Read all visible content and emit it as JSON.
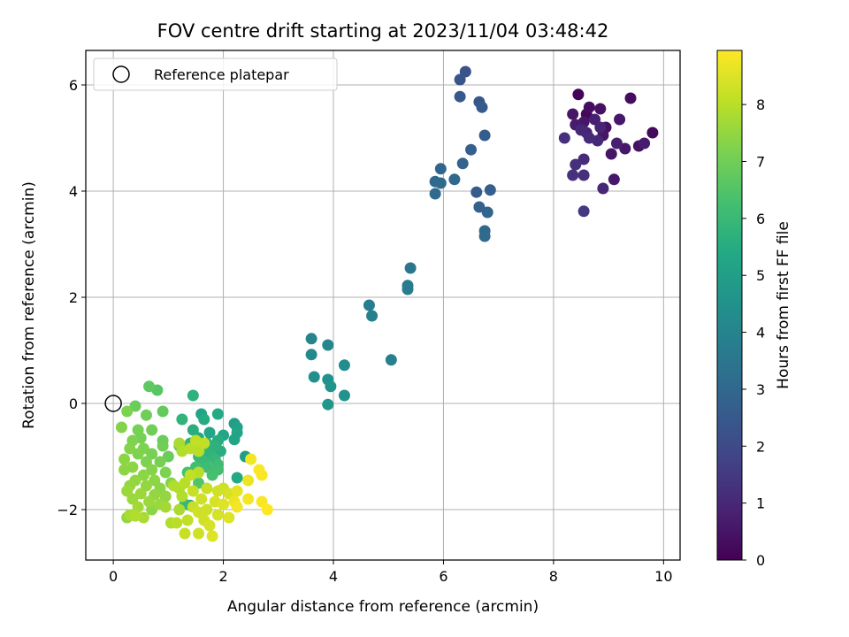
{
  "chart_data": {
    "type": "scatter",
    "title": "FOV centre drift starting at 2023/11/04 03:48:42",
    "xlabel": "Angular distance from reference (arcmin)",
    "ylabel": "Rotation from reference (arcmin)",
    "xlim": [
      -0.5,
      10.3
    ],
    "ylim": [
      -2.95,
      6.65
    ],
    "xticks": [
      0,
      2,
      4,
      6,
      8,
      10
    ],
    "yticks": [
      -2,
      0,
      2,
      4,
      6
    ],
    "xtick_labels": [
      "0",
      "2",
      "4",
      "6",
      "8",
      "10"
    ],
    "ytick_labels": [
      "−2",
      "0",
      "2",
      "4",
      "6"
    ],
    "grid": true,
    "legend": {
      "placement": "top-left",
      "entries": [
        "Reference platepar"
      ]
    },
    "reference_point": {
      "x": 0,
      "y": 0,
      "label": "Reference platepar"
    },
    "colorbar": {
      "label": "Hours from first FF file",
      "colormap": "viridis",
      "min": 0,
      "max": 8.95,
      "ticks": [
        0,
        1,
        2,
        3,
        4,
        5,
        6,
        7,
        8
      ],
      "tick_labels": [
        "0",
        "1",
        "2",
        "3",
        "4",
        "5",
        "6",
        "7",
        "8"
      ]
    },
    "points": [
      {
        "x": 8.45,
        "y": 5.82,
        "c": 0.1
      },
      {
        "x": 8.6,
        "y": 5.45,
        "c": 0.2
      },
      {
        "x": 8.65,
        "y": 5.58,
        "c": 0.3
      },
      {
        "x": 8.85,
        "y": 5.55,
        "c": 0.4
      },
      {
        "x": 9.4,
        "y": 5.75,
        "c": 0.3
      },
      {
        "x": 8.35,
        "y": 5.45,
        "c": 0.5
      },
      {
        "x": 8.55,
        "y": 5.3,
        "c": 0.6
      },
      {
        "x": 8.4,
        "y": 5.25,
        "c": 0.7
      },
      {
        "x": 8.75,
        "y": 5.35,
        "c": 0.8
      },
      {
        "x": 8.85,
        "y": 5.2,
        "c": 0.9
      },
      {
        "x": 9.2,
        "y": 5.35,
        "c": 0.6
      },
      {
        "x": 9.8,
        "y": 5.1,
        "c": 0.2
      },
      {
        "x": 8.95,
        "y": 5.2,
        "c": 0.4
      },
      {
        "x": 8.9,
        "y": 5.05,
        "c": 0.5
      },
      {
        "x": 8.6,
        "y": 5.1,
        "c": 0.9
      },
      {
        "x": 8.5,
        "y": 5.15,
        "c": 1.0
      },
      {
        "x": 8.65,
        "y": 5.0,
        "c": 1.1
      },
      {
        "x": 8.2,
        "y": 5.0,
        "c": 1.2
      },
      {
        "x": 8.8,
        "y": 4.95,
        "c": 1.0
      },
      {
        "x": 9.15,
        "y": 4.9,
        "c": 0.8
      },
      {
        "x": 9.3,
        "y": 4.8,
        "c": 0.6
      },
      {
        "x": 9.55,
        "y": 4.85,
        "c": 0.4
      },
      {
        "x": 9.65,
        "y": 4.9,
        "c": 0.7
      },
      {
        "x": 9.05,
        "y": 4.7,
        "c": 0.5
      },
      {
        "x": 8.55,
        "y": 4.6,
        "c": 1.1
      },
      {
        "x": 8.4,
        "y": 4.5,
        "c": 1.2
      },
      {
        "x": 8.35,
        "y": 4.3,
        "c": 1.3
      },
      {
        "x": 8.55,
        "y": 4.3,
        "c": 1.2
      },
      {
        "x": 9.1,
        "y": 4.22,
        "c": 0.6
      },
      {
        "x": 8.9,
        "y": 4.05,
        "c": 1.0
      },
      {
        "x": 8.55,
        "y": 3.62,
        "c": 1.5
      },
      {
        "x": 6.4,
        "y": 6.25,
        "c": 2.3
      },
      {
        "x": 6.3,
        "y": 6.1,
        "c": 2.4
      },
      {
        "x": 6.3,
        "y": 5.78,
        "c": 2.5
      },
      {
        "x": 6.65,
        "y": 5.68,
        "c": 2.4
      },
      {
        "x": 6.7,
        "y": 5.58,
        "c": 2.5
      },
      {
        "x": 6.75,
        "y": 5.05,
        "c": 2.6
      },
      {
        "x": 6.5,
        "y": 4.78,
        "c": 2.7
      },
      {
        "x": 6.35,
        "y": 4.52,
        "c": 2.8
      },
      {
        "x": 5.95,
        "y": 4.42,
        "c": 2.9
      },
      {
        "x": 6.2,
        "y": 4.22,
        "c": 3.0
      },
      {
        "x": 5.85,
        "y": 4.18,
        "c": 3.0
      },
      {
        "x": 5.95,
        "y": 4.15,
        "c": 3.1
      },
      {
        "x": 6.6,
        "y": 3.98,
        "c": 2.6
      },
      {
        "x": 6.85,
        "y": 4.02,
        "c": 2.7
      },
      {
        "x": 5.85,
        "y": 3.95,
        "c": 3.1
      },
      {
        "x": 6.65,
        "y": 3.7,
        "c": 2.8
      },
      {
        "x": 6.8,
        "y": 3.6,
        "c": 2.9
      },
      {
        "x": 6.75,
        "y": 3.25,
        "c": 3.0
      },
      {
        "x": 6.75,
        "y": 3.15,
        "c": 3.1
      },
      {
        "x": 5.4,
        "y": 2.55,
        "c": 3.5
      },
      {
        "x": 5.35,
        "y": 2.22,
        "c": 3.6
      },
      {
        "x": 5.35,
        "y": 2.15,
        "c": 3.7
      },
      {
        "x": 4.65,
        "y": 1.85,
        "c": 3.8
      },
      {
        "x": 4.7,
        "y": 1.65,
        "c": 3.9
      },
      {
        "x": 3.6,
        "y": 1.22,
        "c": 4.0
      },
      {
        "x": 3.9,
        "y": 1.1,
        "c": 4.1
      },
      {
        "x": 3.6,
        "y": 0.92,
        "c": 4.2
      },
      {
        "x": 5.05,
        "y": 0.82,
        "c": 3.9
      },
      {
        "x": 4.2,
        "y": 0.72,
        "c": 4.3
      },
      {
        "x": 3.65,
        "y": 0.5,
        "c": 4.4
      },
      {
        "x": 3.9,
        "y": 0.45,
        "c": 4.5
      },
      {
        "x": 3.95,
        "y": 0.32,
        "c": 4.6
      },
      {
        "x": 4.2,
        "y": 0.15,
        "c": 4.5
      },
      {
        "x": 3.9,
        "y": -0.02,
        "c": 4.7
      },
      {
        "x": 1.45,
        "y": 0.15,
        "c": 5.7
      },
      {
        "x": 1.6,
        "y": -0.2,
        "c": 5.2
      },
      {
        "x": 1.9,
        "y": -0.2,
        "c": 5.4
      },
      {
        "x": 1.65,
        "y": -0.3,
        "c": 5.5
      },
      {
        "x": 1.25,
        "y": -0.3,
        "c": 5.8
      },
      {
        "x": 2.2,
        "y": -0.38,
        "c": 5.0
      },
      {
        "x": 2.25,
        "y": -0.45,
        "c": 5.1
      },
      {
        "x": 2.25,
        "y": -0.55,
        "c": 5.2
      },
      {
        "x": 1.45,
        "y": -0.5,
        "c": 5.6
      },
      {
        "x": 1.75,
        "y": -0.55,
        "c": 5.3
      },
      {
        "x": 2.0,
        "y": -0.6,
        "c": 5.3
      },
      {
        "x": 1.55,
        "y": -0.65,
        "c": 5.4
      },
      {
        "x": 2.2,
        "y": -0.68,
        "c": 5.2
      },
      {
        "x": 1.9,
        "y": -0.7,
        "c": 5.5
      },
      {
        "x": 1.7,
        "y": -0.75,
        "c": 5.6
      },
      {
        "x": 1.4,
        "y": -0.75,
        "c": 5.8
      },
      {
        "x": 1.85,
        "y": -0.8,
        "c": 5.7
      },
      {
        "x": 1.6,
        "y": -0.85,
        "c": 5.9
      },
      {
        "x": 1.95,
        "y": -0.9,
        "c": 5.6
      },
      {
        "x": 1.75,
        "y": -0.95,
        "c": 5.8
      },
      {
        "x": 2.4,
        "y": -1.0,
        "c": 5.0
      },
      {
        "x": 1.55,
        "y": -1.0,
        "c": 6.0
      },
      {
        "x": 1.85,
        "y": -1.05,
        "c": 5.9
      },
      {
        "x": 1.65,
        "y": -1.1,
        "c": 6.0
      },
      {
        "x": 1.9,
        "y": -1.15,
        "c": 6.1
      },
      {
        "x": 1.7,
        "y": -1.2,
        "c": 6.1
      },
      {
        "x": 1.5,
        "y": -1.2,
        "c": 6.2
      },
      {
        "x": 1.9,
        "y": -1.25,
        "c": 6.2
      },
      {
        "x": 1.35,
        "y": -1.3,
        "c": 6.3
      },
      {
        "x": 1.8,
        "y": -1.35,
        "c": 6.3
      },
      {
        "x": 2.25,
        "y": -1.4,
        "c": 5.4
      },
      {
        "x": 1.55,
        "y": -1.5,
        "c": 6.5
      },
      {
        "x": 1.3,
        "y": -1.9,
        "c": 5.9
      },
      {
        "x": 1.4,
        "y": -1.92,
        "c": 5.7
      },
      {
        "x": 0.65,
        "y": 0.32,
        "c": 6.7
      },
      {
        "x": 0.8,
        "y": 0.25,
        "c": 6.6
      },
      {
        "x": 0.4,
        "y": -0.05,
        "c": 6.9
      },
      {
        "x": 0.25,
        "y": -0.15,
        "c": 7.2
      },
      {
        "x": 0.6,
        "y": -0.22,
        "c": 7.0
      },
      {
        "x": 0.9,
        "y": -0.15,
        "c": 6.8
      },
      {
        "x": 0.15,
        "y": -0.45,
        "c": 7.3
      },
      {
        "x": 0.45,
        "y": -0.5,
        "c": 7.1
      },
      {
        "x": 0.7,
        "y": -0.5,
        "c": 7.0
      },
      {
        "x": 0.35,
        "y": -0.7,
        "c": 7.2
      },
      {
        "x": 0.5,
        "y": -0.65,
        "c": 7.1
      },
      {
        "x": 0.9,
        "y": -0.7,
        "c": 6.9
      },
      {
        "x": 0.3,
        "y": -0.85,
        "c": 7.3
      },
      {
        "x": 0.55,
        "y": -0.85,
        "c": 7.2
      },
      {
        "x": 1.2,
        "y": -0.8,
        "c": 6.8
      },
      {
        "x": 0.9,
        "y": -0.8,
        "c": 7.0
      },
      {
        "x": 0.45,
        "y": -0.95,
        "c": 7.2
      },
      {
        "x": 0.7,
        "y": -0.95,
        "c": 7.1
      },
      {
        "x": 1.0,
        "y": -1.0,
        "c": 6.9
      },
      {
        "x": 0.2,
        "y": -1.05,
        "c": 7.4
      },
      {
        "x": 0.6,
        "y": -1.1,
        "c": 7.2
      },
      {
        "x": 0.85,
        "y": -1.1,
        "c": 7.1
      },
      {
        "x": 0.35,
        "y": -1.2,
        "c": 7.4
      },
      {
        "x": 0.2,
        "y": -1.25,
        "c": 7.4
      },
      {
        "x": 0.7,
        "y": -1.25,
        "c": 7.3
      },
      {
        "x": 0.95,
        "y": -1.3,
        "c": 7.2
      },
      {
        "x": 0.55,
        "y": -1.35,
        "c": 7.4
      },
      {
        "x": 0.4,
        "y": -1.45,
        "c": 7.5
      },
      {
        "x": 0.75,
        "y": -1.45,
        "c": 7.4
      },
      {
        "x": 1.05,
        "y": -1.5,
        "c": 7.3
      },
      {
        "x": 0.3,
        "y": -1.55,
        "c": 7.5
      },
      {
        "x": 0.6,
        "y": -1.55,
        "c": 7.5
      },
      {
        "x": 0.85,
        "y": -1.6,
        "c": 7.4
      },
      {
        "x": 0.25,
        "y": -1.65,
        "c": 7.6
      },
      {
        "x": 0.5,
        "y": -1.7,
        "c": 7.6
      },
      {
        "x": 0.75,
        "y": -1.72,
        "c": 7.5
      },
      {
        "x": 0.95,
        "y": -1.75,
        "c": 7.5
      },
      {
        "x": 0.35,
        "y": -1.8,
        "c": 7.6
      },
      {
        "x": 0.65,
        "y": -1.85,
        "c": 7.6
      },
      {
        "x": 0.85,
        "y": -1.9,
        "c": 7.6
      },
      {
        "x": 0.45,
        "y": -1.95,
        "c": 7.7
      },
      {
        "x": 0.7,
        "y": -2.0,
        "c": 7.4
      },
      {
        "x": 0.95,
        "y": -1.95,
        "c": 7.7
      },
      {
        "x": 0.3,
        "y": -2.1,
        "c": 7.8
      },
      {
        "x": 0.55,
        "y": -2.15,
        "c": 7.8
      },
      {
        "x": 0.4,
        "y": -2.12,
        "c": 7.9
      },
      {
        "x": 0.25,
        "y": -2.15,
        "c": 7.5
      },
      {
        "x": 1.2,
        "y": -0.75,
        "c": 7.8
      },
      {
        "x": 1.5,
        "y": -0.7,
        "c": 8.1
      },
      {
        "x": 1.65,
        "y": -0.75,
        "c": 8.1
      },
      {
        "x": 1.4,
        "y": -0.85,
        "c": 8.0
      },
      {
        "x": 1.25,
        "y": -0.9,
        "c": 7.9
      },
      {
        "x": 1.55,
        "y": -0.9,
        "c": 8.0
      },
      {
        "x": 1.4,
        "y": -1.35,
        "c": 8.1
      },
      {
        "x": 1.55,
        "y": -1.3,
        "c": 8.0
      },
      {
        "x": 1.3,
        "y": -1.5,
        "c": 8.0
      },
      {
        "x": 1.1,
        "y": -1.55,
        "c": 7.9
      },
      {
        "x": 1.2,
        "y": -1.6,
        "c": 7.9
      },
      {
        "x": 1.45,
        "y": -1.65,
        "c": 8.2
      },
      {
        "x": 1.7,
        "y": -1.6,
        "c": 8.2
      },
      {
        "x": 2.0,
        "y": -1.6,
        "c": 8.3
      },
      {
        "x": 1.9,
        "y": -1.65,
        "c": 8.3
      },
      {
        "x": 2.1,
        "y": -1.7,
        "c": 8.4
      },
      {
        "x": 1.25,
        "y": -1.75,
        "c": 7.9
      },
      {
        "x": 1.6,
        "y": -1.8,
        "c": 8.3
      },
      {
        "x": 1.85,
        "y": -1.85,
        "c": 8.4
      },
      {
        "x": 2.0,
        "y": -1.9,
        "c": 8.5
      },
      {
        "x": 1.45,
        "y": -1.95,
        "c": 8.2
      },
      {
        "x": 1.7,
        "y": -2.0,
        "c": 8.3
      },
      {
        "x": 1.2,
        "y": -2.0,
        "c": 7.8
      },
      {
        "x": 1.55,
        "y": -2.05,
        "c": 8.3
      },
      {
        "x": 1.9,
        "y": -2.1,
        "c": 8.4
      },
      {
        "x": 2.1,
        "y": -2.15,
        "c": 8.5
      },
      {
        "x": 1.35,
        "y": -2.2,
        "c": 8.1
      },
      {
        "x": 1.65,
        "y": -2.2,
        "c": 8.3
      },
      {
        "x": 1.05,
        "y": -2.25,
        "c": 7.9
      },
      {
        "x": 1.15,
        "y": -2.25,
        "c": 8.0
      },
      {
        "x": 1.75,
        "y": -2.3,
        "c": 8.4
      },
      {
        "x": 1.3,
        "y": -2.45,
        "c": 8.2
      },
      {
        "x": 1.55,
        "y": -2.45,
        "c": 8.3
      },
      {
        "x": 1.8,
        "y": -2.5,
        "c": 8.5
      },
      {
        "x": 2.5,
        "y": -1.05,
        "c": 8.8
      },
      {
        "x": 2.65,
        "y": -1.25,
        "c": 8.9
      },
      {
        "x": 2.7,
        "y": -1.35,
        "c": 8.9
      },
      {
        "x": 2.45,
        "y": -1.45,
        "c": 8.7
      },
      {
        "x": 2.25,
        "y": -1.65,
        "c": 8.6
      },
      {
        "x": 2.2,
        "y": -1.85,
        "c": 8.7
      },
      {
        "x": 2.45,
        "y": -1.8,
        "c": 8.8
      },
      {
        "x": 2.7,
        "y": -1.85,
        "c": 8.9
      },
      {
        "x": 2.25,
        "y": -1.95,
        "c": 8.8
      },
      {
        "x": 2.8,
        "y": -2.0,
        "c": 8.95
      }
    ]
  }
}
